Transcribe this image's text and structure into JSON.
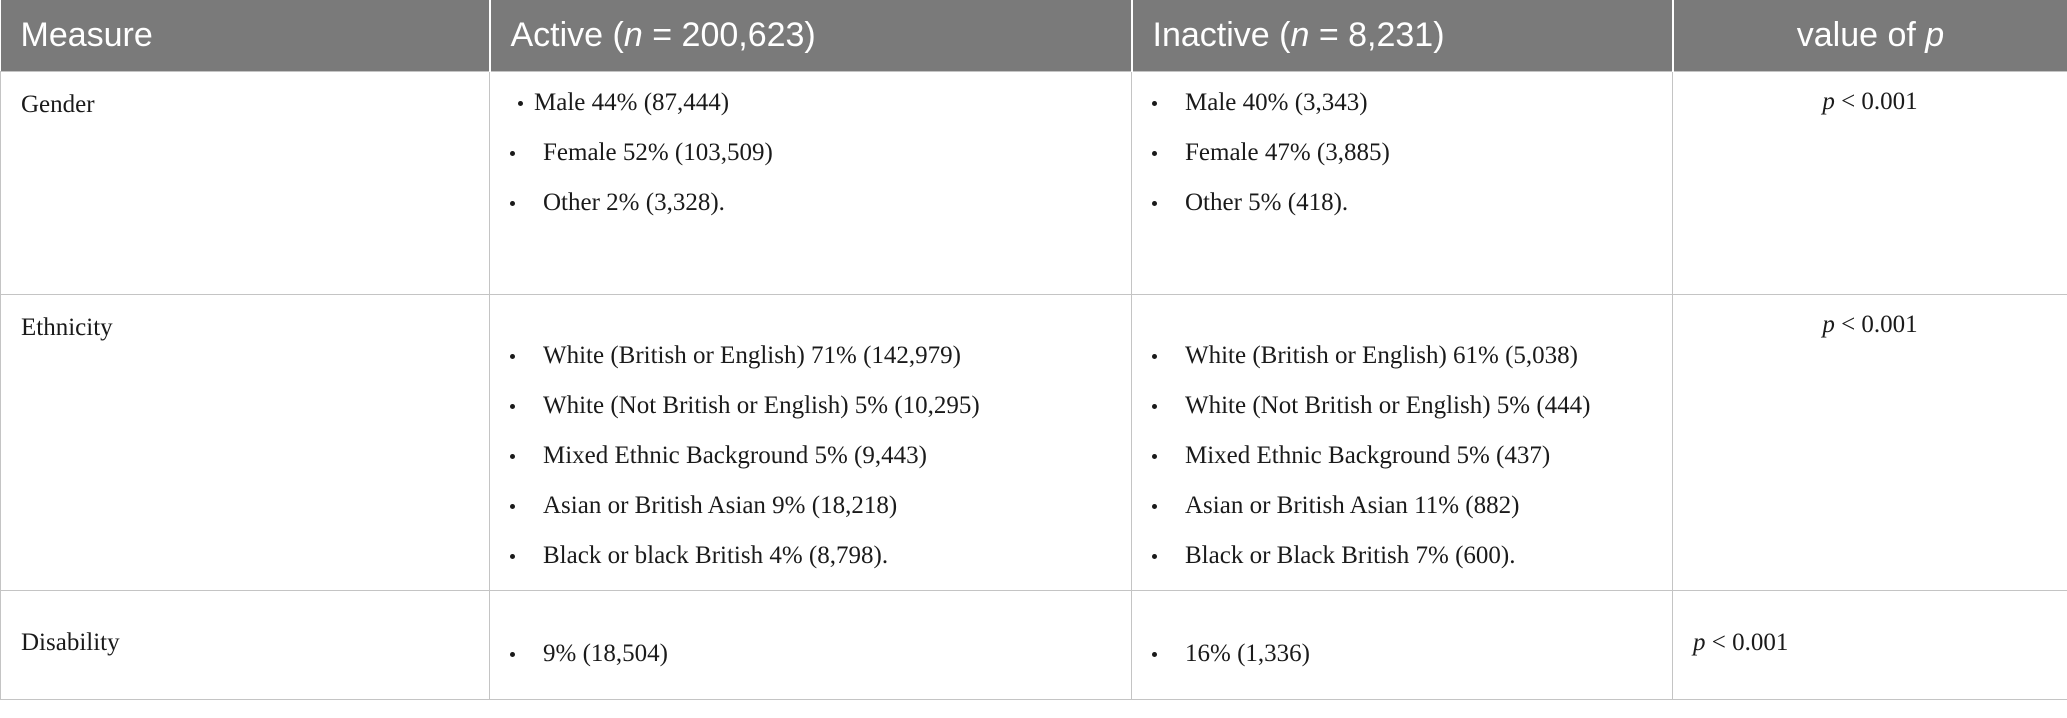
{
  "table": {
    "headers": {
      "measure": "Measure",
      "active_prefix": "Active (",
      "active_n": "n",
      "active_suffix": " = 200,623)",
      "inactive_prefix": "Inactive (",
      "inactive_n": "n",
      "inactive_suffix": " = 8,231)",
      "pvalue_prefix": "value of ",
      "pvalue_p": "p"
    },
    "rows": [
      {
        "measure": "Gender",
        "active": [
          "Male 44% (87,444)",
          "Female 52% (103,509)",
          "Other 2% (3,328)."
        ],
        "inactive": [
          "Male 40% (3,343)",
          "Female 47% (3,885)",
          "Other 5% (418)."
        ],
        "p_symbol": "p",
        "p_text": " < 0.001"
      },
      {
        "measure": "Ethnicity",
        "active": [
          "White (British or English) 71% (142,979)",
          "White (Not British or English) 5% (10,295)",
          "Mixed Ethnic Background 5% (9,443)",
          "Asian or British Asian 9% (18,218)",
          "Black or black British 4% (8,798)."
        ],
        "inactive": [
          "White (British or English) 61% (5,038)",
          "White (Not British or English) 5% (444)",
          "Mixed Ethnic Background 5% (437)",
          "Asian or British Asian 11% (882)",
          "Black or Black British 7% (600)."
        ],
        "p_symbol": "p",
        "p_text": " < 0.001"
      },
      {
        "measure": "Disability",
        "active": [
          "9% (18,504)"
        ],
        "inactive": [
          "16% (1,336)"
        ],
        "p_symbol": "p",
        "p_text": " < 0.001"
      }
    ]
  }
}
